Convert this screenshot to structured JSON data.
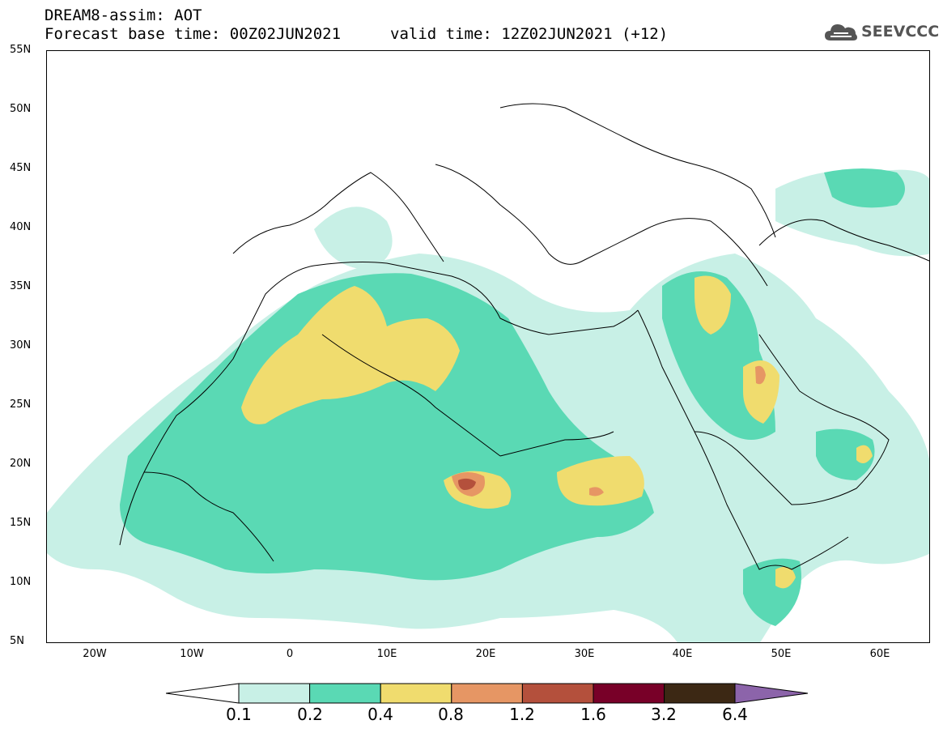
{
  "header": {
    "line1": "DREAM8-assim: AOT",
    "base_time": "Forecast base time: 00Z02JUN2021",
    "valid_time": "valid time: 12Z02JUN2021 (+12)"
  },
  "logo": {
    "text": "SEEVCCC",
    "icon": "cloud-icon"
  },
  "map": {
    "lat_labels": [
      "55N",
      "50N",
      "45N",
      "40N",
      "35N",
      "30N",
      "25N",
      "20N",
      "15N",
      "10N",
      "5N"
    ],
    "lon_labels": [
      "20W",
      "10W",
      "0",
      "10E",
      "20E",
      "30E",
      "40E",
      "50E",
      "60E"
    ],
    "lon_range": [
      -25,
      65
    ],
    "lat_range": [
      5,
      55
    ]
  },
  "legend": {
    "levels": [
      "0.1",
      "0.2",
      "0.4",
      "0.8",
      "1.2",
      "1.6",
      "3.2",
      "6.4"
    ],
    "colors": [
      "#c8f0e6",
      "#5ad9b4",
      "#f0dc6e",
      "#e69664",
      "#b4503c",
      "#780028",
      "#3c2814",
      "#8c64aa"
    ],
    "under_color": "#ffffff"
  }
}
